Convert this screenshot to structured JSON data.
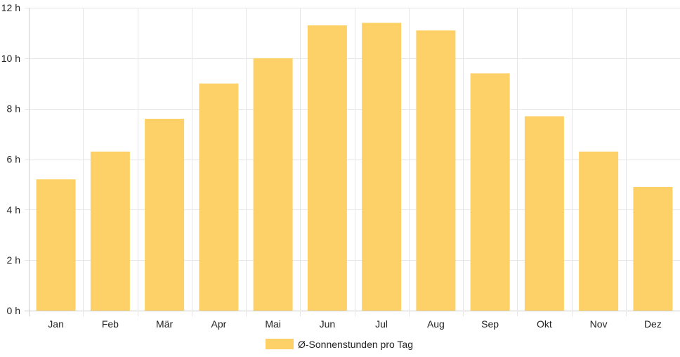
{
  "chart_data": {
    "type": "bar",
    "categories": [
      "Jan",
      "Feb",
      "Mär",
      "Apr",
      "Mai",
      "Jun",
      "Jul",
      "Aug",
      "Sep",
      "Okt",
      "Nov",
      "Dez"
    ],
    "series": [
      {
        "name": "Ø-Sonnenstunden pro Tag",
        "values": [
          5.2,
          6.3,
          7.6,
          9.0,
          10.0,
          11.3,
          11.4,
          11.1,
          9.4,
          7.7,
          6.3,
          4.9
        ]
      }
    ],
    "y_ticks": [
      "0 h",
      "2 h",
      "4 h",
      "6 h",
      "8 h",
      "10 h",
      "12 h"
    ],
    "ylim": [
      0,
      12
    ],
    "grid": true,
    "legend_position": "bottom",
    "colors": {
      "bar": "#fdd167",
      "grid": "#e6e6e6",
      "axis": "#cccccc",
      "text": "#222222"
    }
  }
}
